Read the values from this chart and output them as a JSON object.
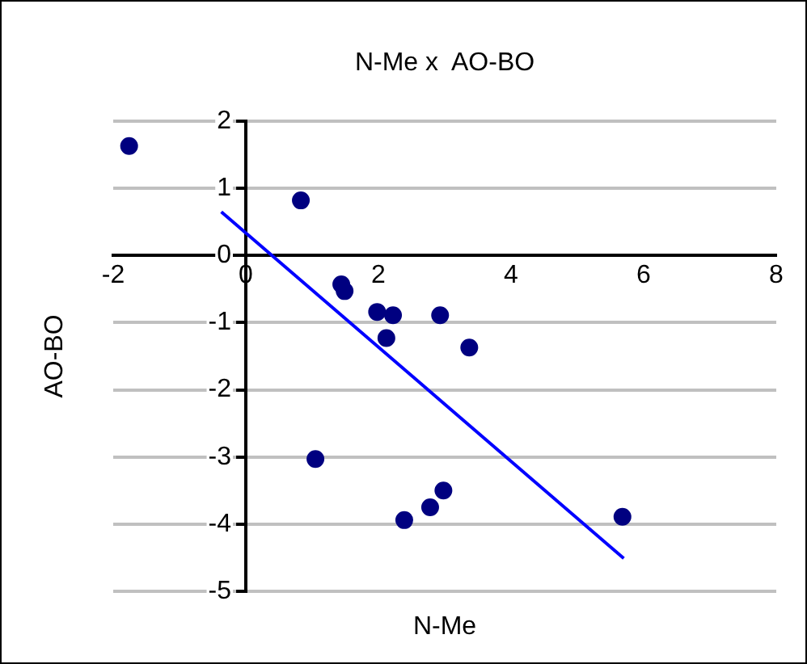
{
  "chart_data": {
    "type": "scatter",
    "title": "N-Me x  AO-BO",
    "xlabel": "N-Me",
    "ylabel": "AO-BO",
    "xlim": [
      -2,
      8
    ],
    "xticks": [
      -2,
      0,
      2,
      4,
      6,
      8
    ],
    "ylim": [
      -5,
      2
    ],
    "yticks": [
      -5,
      -4,
      -3,
      -2,
      -1,
      0,
      1,
      2
    ],
    "grid": "y",
    "legend": false,
    "marker": "circle",
    "series": [
      {
        "color": "#000080",
        "x": [
          -1.76,
          0.83,
          1.44,
          1.49,
          1.98,
          2.22,
          2.12,
          2.93,
          3.37,
          1.05,
          2.39,
          2.78,
          2.98,
          5.68
        ],
        "values": [
          1.63,
          0.82,
          -0.43,
          -0.53,
          -0.84,
          -0.89,
          -1.23,
          -0.89,
          -1.37,
          -3.03,
          -3.94,
          -3.75,
          -3.5,
          -3.89
        ]
      },
      {
        "type": "line",
        "color": "#0000ff",
        "marker": "none",
        "x": [
          -0.37,
          5.7
        ],
        "values": [
          0.65,
          -4.51
        ]
      }
    ]
  }
}
